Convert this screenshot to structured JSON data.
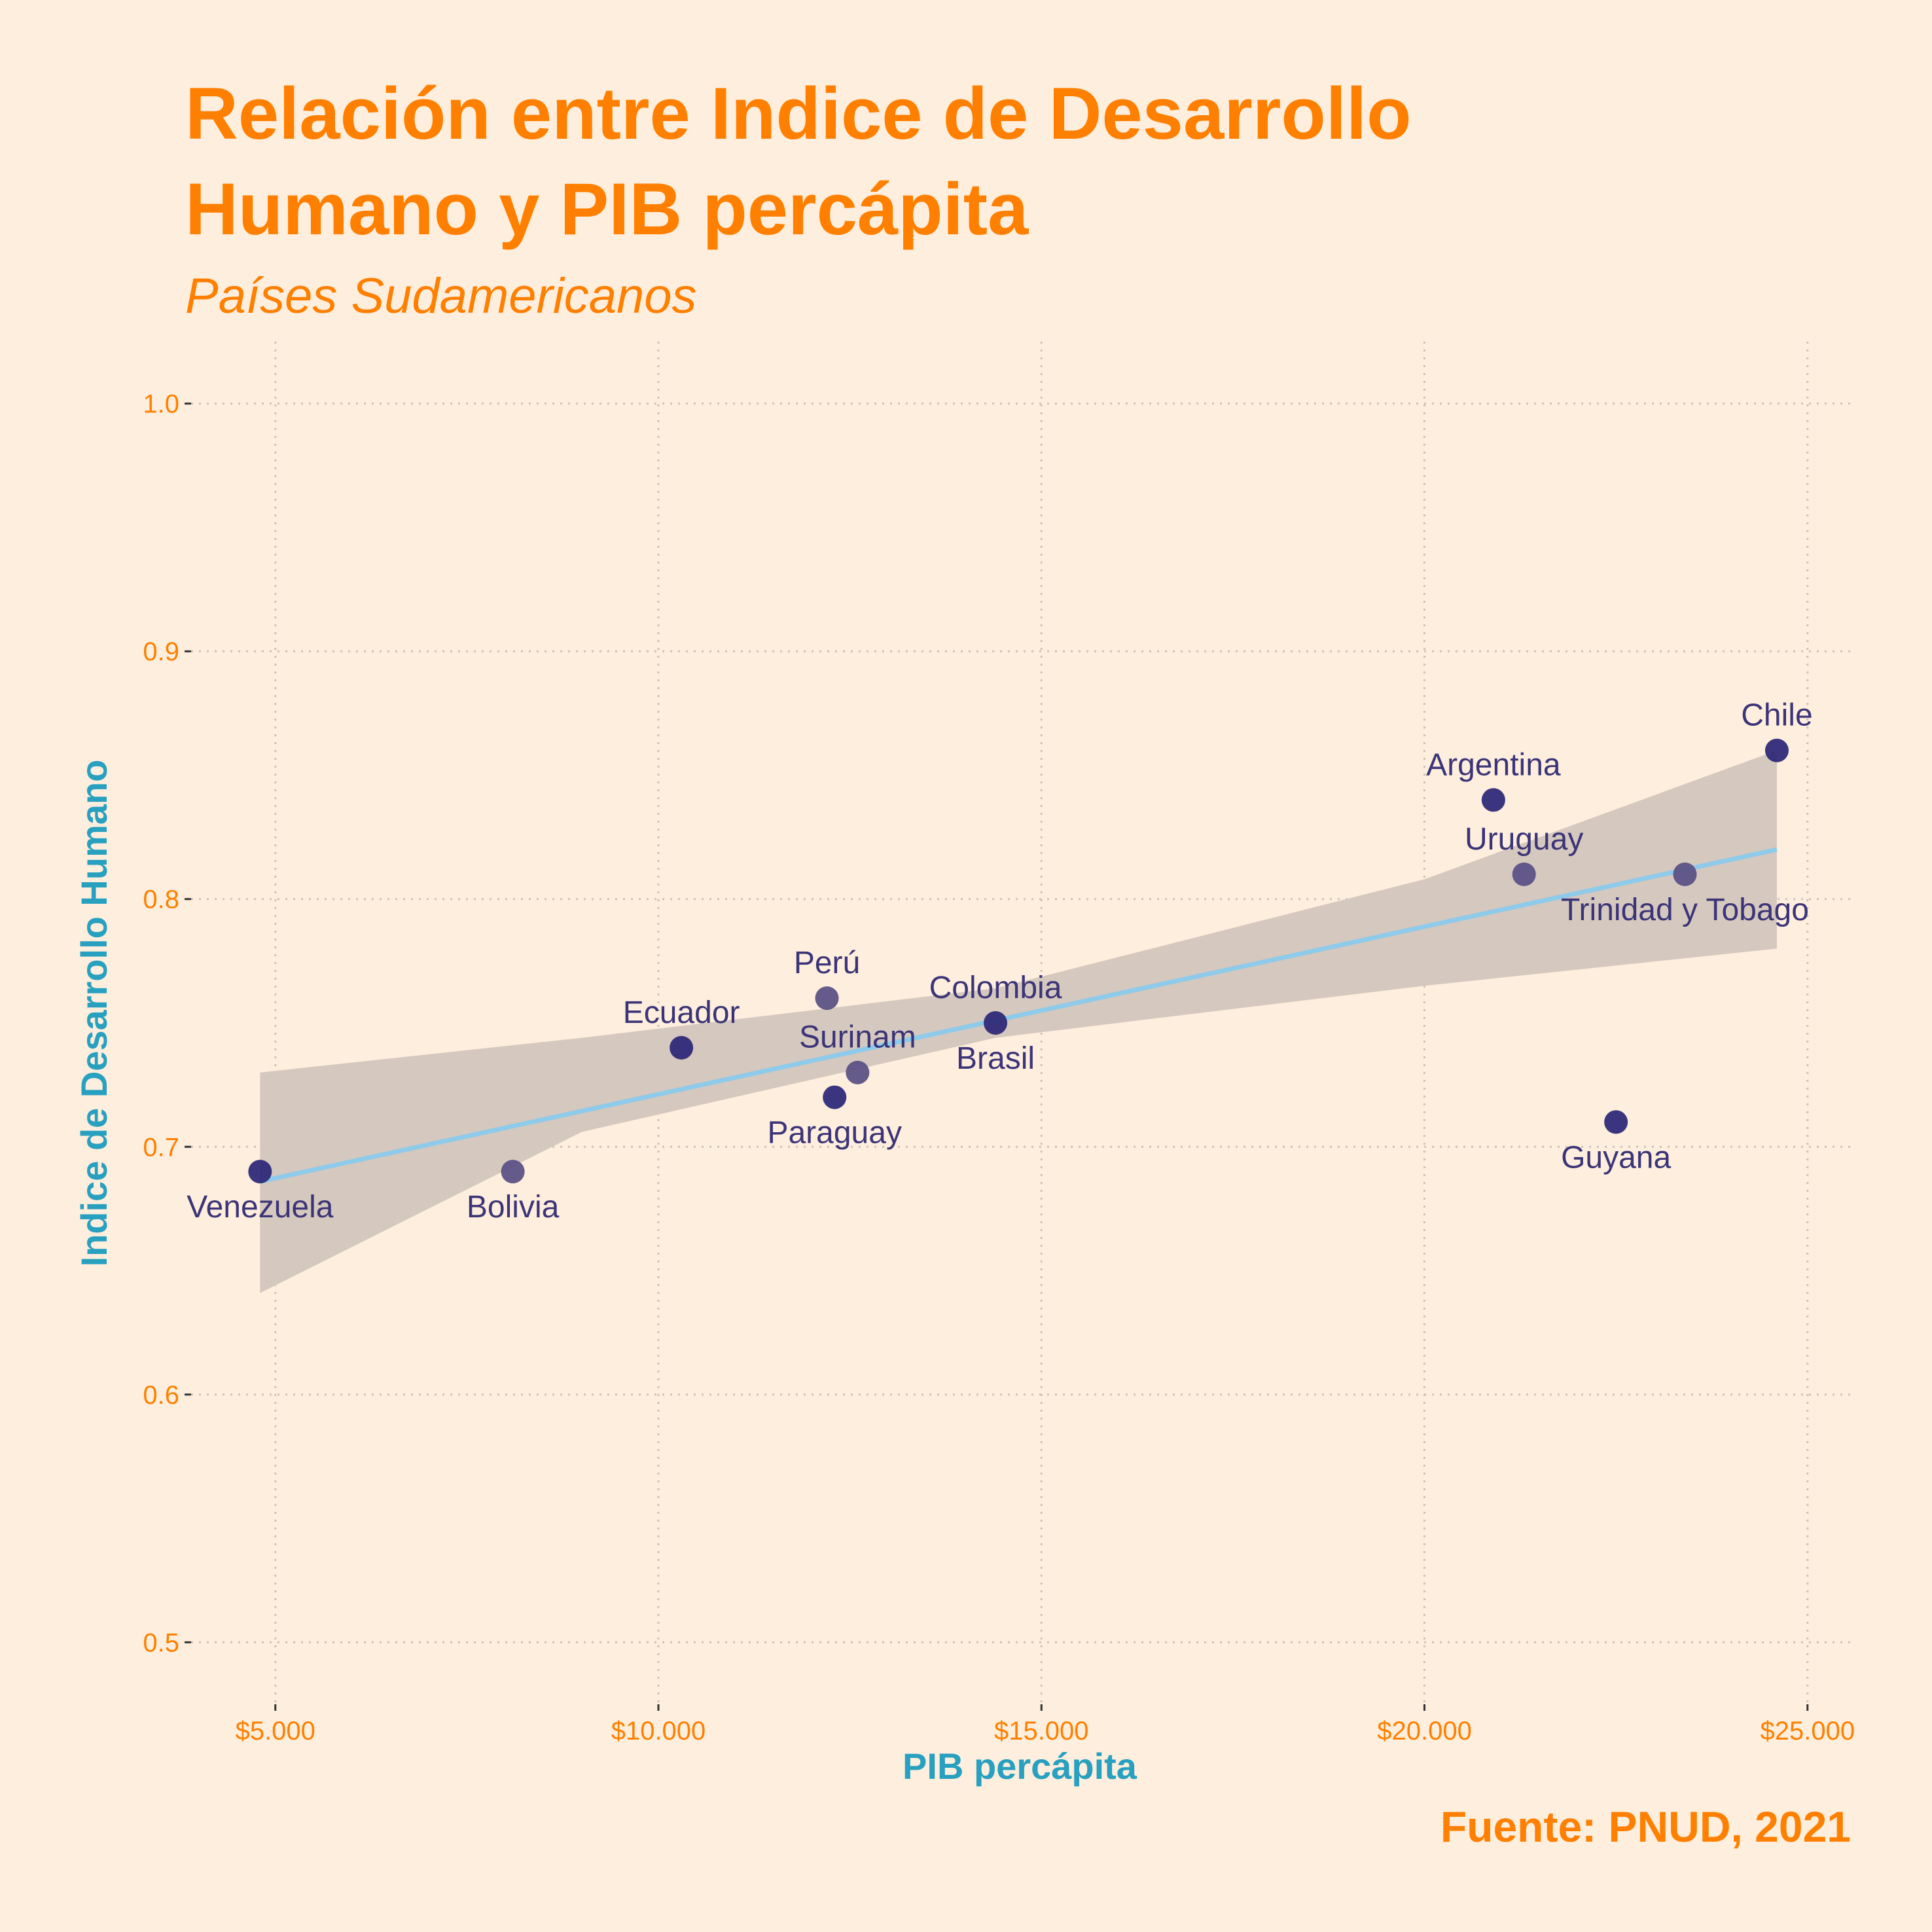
{
  "chart_data": {
    "type": "scatter",
    "title": "Relación entre Indice de Desarrollo Humano y PIB percápita",
    "title_lines": [
      "Relación entre Indice de Desarrollo",
      "Humano y PIB percápita"
    ],
    "subtitle": "Países Sudamericanos",
    "xlabel": "PIB percápita",
    "ylabel": "Indice de Desarrollo Humano",
    "caption": "Fuente: PNUD, 2021",
    "xlim": [
      3900,
      25600
    ],
    "ylim": [
      0.475,
      1.025
    ],
    "x_ticks": [
      5000,
      10000,
      15000,
      20000,
      25000
    ],
    "x_tick_labels": [
      "$5.000",
      "$10.000",
      "$15.000",
      "$20.000",
      "$25.000"
    ],
    "y_ticks": [
      0.5,
      0.6,
      0.7,
      0.8,
      0.9,
      1.0
    ],
    "y_tick_labels": [
      "0.5",
      "0.6",
      "0.7",
      "0.8",
      "0.9",
      "1.0"
    ],
    "grid": true,
    "legend": "none",
    "colors": {
      "background": "#FEEEDD",
      "title": "#FF8000",
      "axis_title": "#28A0BF",
      "point_dark": "#2F2A78",
      "point_light": "#5C5286",
      "label": "#3B3478",
      "trend_line": "#8ECAEA",
      "confidence_band": "#D5C8BE",
      "grid": "#CBC3BC"
    },
    "points": [
      {
        "label": "Venezuela",
        "x": 4800,
        "y": 0.69,
        "label_pos": "below"
      },
      {
        "label": "Bolivia",
        "x": 8100,
        "y": 0.69,
        "label_pos": "below"
      },
      {
        "label": "Ecuador",
        "x": 10300,
        "y": 0.74,
        "label_pos": "above"
      },
      {
        "label": "Perú",
        "x": 12200,
        "y": 0.76,
        "label_pos": "above"
      },
      {
        "label": "Paraguay",
        "x": 12300,
        "y": 0.72,
        "label_pos": "below"
      },
      {
        "label": "Surinam",
        "x": 12600,
        "y": 0.73,
        "label_pos": "above"
      },
      {
        "label": "Colombia",
        "x": 14400,
        "y": 0.75,
        "label_pos": "above"
      },
      {
        "label": "Brasil",
        "x": 14400,
        "y": 0.75,
        "label_pos": "below",
        "no_marker": true
      },
      {
        "label": "Argentina",
        "x": 20900,
        "y": 0.84,
        "label_pos": "above"
      },
      {
        "label": "Uruguay",
        "x": 21300,
        "y": 0.81,
        "label_pos": "above"
      },
      {
        "label": "Guyana",
        "x": 22500,
        "y": 0.71,
        "label_pos": "below"
      },
      {
        "label": "Trinidad y Tobago",
        "x": 23400,
        "y": 0.81,
        "label_pos": "below"
      },
      {
        "label": "Chile",
        "x": 24600,
        "y": 0.86,
        "label_pos": "above"
      }
    ],
    "trend": {
      "x": [
        4800,
        24600
      ],
      "y": [
        0.686,
        0.82
      ],
      "ci_lower": [
        0.641,
        0.78
      ],
      "ci_upper": [
        0.73,
        0.86
      ],
      "ci_x": [
        4800,
        9000,
        14400,
        20000,
        24600
      ],
      "ci_lower_curve": [
        0.641,
        0.706,
        0.744,
        0.765,
        0.78
      ],
      "ci_upper_curve": [
        0.73,
        0.744,
        0.764,
        0.808,
        0.86
      ]
    }
  }
}
